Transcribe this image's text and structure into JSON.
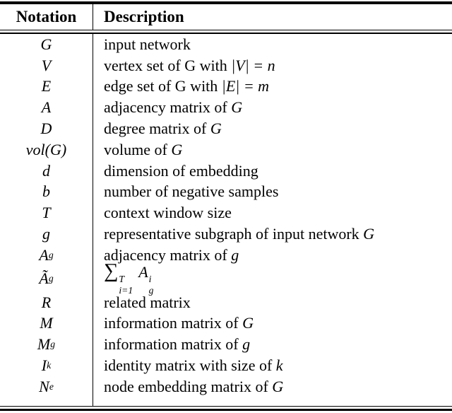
{
  "table": {
    "header": {
      "notation": "Notation",
      "description": "Description"
    },
    "rows": [
      {
        "sym": "G",
        "desc": "input network"
      },
      {
        "sym": "V",
        "desc": "vertex set of G with ",
        "desc_math": "|V| = n"
      },
      {
        "sym": "E",
        "desc": "edge set of G with ",
        "desc_math": "|E| = m"
      },
      {
        "sym": "A",
        "desc": "adjacency matrix of ",
        "desc_math": "G"
      },
      {
        "sym": "D",
        "desc": "degree matrix of ",
        "desc_math": "G"
      },
      {
        "sym": "vol(G)",
        "desc": "volume of ",
        "desc_math": "G"
      },
      {
        "sym": "d",
        "desc": "dimension of embedding"
      },
      {
        "sym": "b",
        "desc": "number of negative samples"
      },
      {
        "sym": "T",
        "desc": "context window size"
      },
      {
        "sym": "g",
        "desc": "representative subgraph of input network ",
        "desc_math": "G"
      },
      {
        "sym": "A",
        "sym_sub": "g",
        "desc": "adjacency matrix of ",
        "desc_math": "g"
      },
      {
        "sym": "Ã",
        "sym_sub": "g",
        "formula": {
          "sum": "∑",
          "upper": "T",
          "lower": "i=1",
          "base": "A",
          "sup": "i",
          "sub": "g"
        }
      },
      {
        "sym": "R",
        "desc": "related matrix"
      },
      {
        "sym": "M",
        "desc": "information matrix of ",
        "desc_math": "G"
      },
      {
        "sym": "M",
        "sym_sub": "g",
        "desc": "information matrix of ",
        "desc_math": "g"
      },
      {
        "sym": "I",
        "sym_sub": "k",
        "desc": "identity matrix with size of ",
        "desc_math": "k"
      },
      {
        "sym": "N",
        "sym_sub": "e",
        "desc": "node embedding matrix of ",
        "desc_math": "G"
      }
    ]
  }
}
